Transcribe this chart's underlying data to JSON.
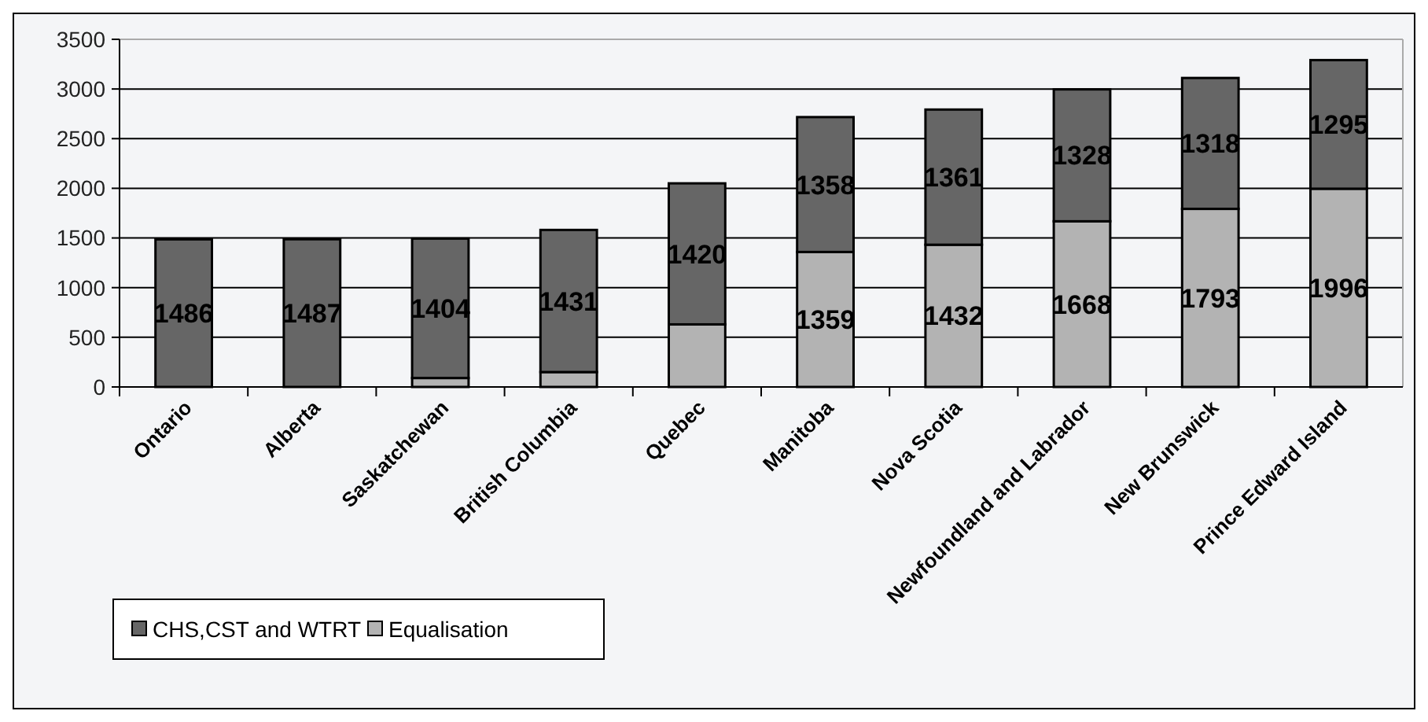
{
  "chart_data": {
    "type": "bar",
    "stacked": true,
    "categories": [
      "Ontario",
      "Alberta",
      "Saskatchewan",
      "British Columbia",
      "Quebec",
      "Manitoba",
      "Nova Scotia",
      "Newfoundland and Labrador",
      "New Brunswick",
      "Prince Edward Island"
    ],
    "series": [
      {
        "name": "Equalisation",
        "color": "#b3b3b3",
        "values": [
          0,
          0,
          90,
          150,
          630,
          1359,
          1432,
          1668,
          1793,
          1996
        ],
        "value_labels": [
          null,
          null,
          null,
          null,
          null,
          "1359",
          "1432",
          "1668",
          "1793",
          "1996"
        ]
      },
      {
        "name": "CHS,CST and WTRT",
        "color": "#666666",
        "values": [
          1486,
          1487,
          1404,
          1431,
          1420,
          1358,
          1361,
          1328,
          1318,
          1295
        ],
        "value_labels": [
          "1486",
          "1487",
          "1404",
          "1431",
          "1420",
          "1358",
          "1361",
          "1328",
          "1318",
          "1295"
        ]
      }
    ],
    "ylim": [
      0,
      3500
    ],
    "yticks": [
      0,
      500,
      1000,
      1500,
      2000,
      2500,
      3000,
      3500
    ],
    "grid": "y",
    "legend": "bottom left"
  }
}
